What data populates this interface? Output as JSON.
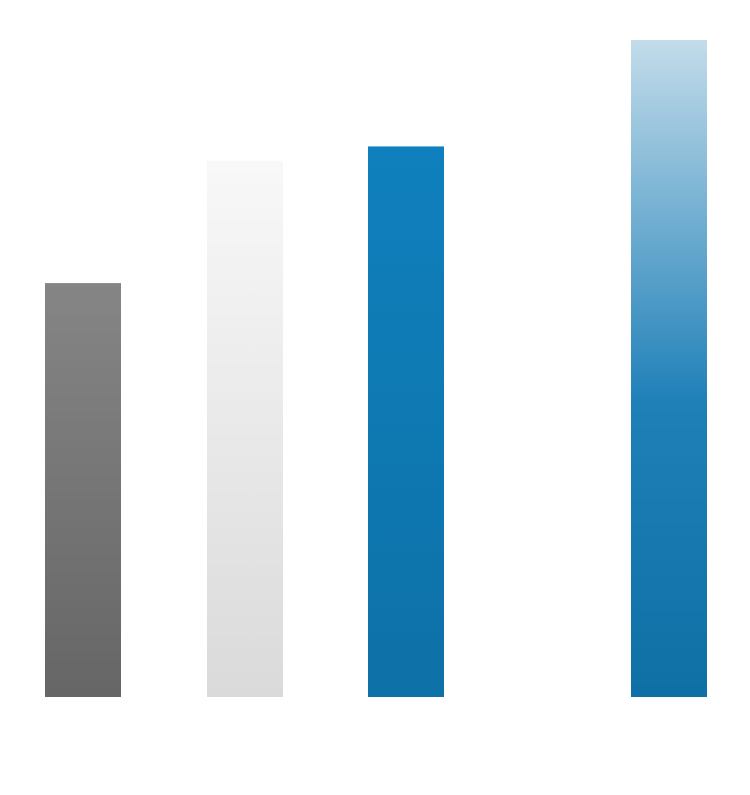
{
  "chart_data": {
    "type": "bar",
    "title": "",
    "xlabel": "",
    "ylabel": "",
    "ylim": [
      0,
      100
    ],
    "grid": false,
    "legend": "none",
    "bars": [
      {
        "value": 63,
        "color_top": "#858585",
        "color_bottom": "#666666"
      },
      {
        "value": 81.6,
        "color_top": "#f8f8f8",
        "color_bottom": "#dadada"
      },
      {
        "value": 83.8,
        "color_top": "#0f80bd",
        "color_bottom": "#0e71a7"
      },
      {
        "value": 100,
        "color_top": "#c3dcea",
        "color_bottom": "#0e70a5",
        "gradient_mid": "#1f80b8",
        "gradient_mid_stop": 0.55
      }
    ]
  }
}
